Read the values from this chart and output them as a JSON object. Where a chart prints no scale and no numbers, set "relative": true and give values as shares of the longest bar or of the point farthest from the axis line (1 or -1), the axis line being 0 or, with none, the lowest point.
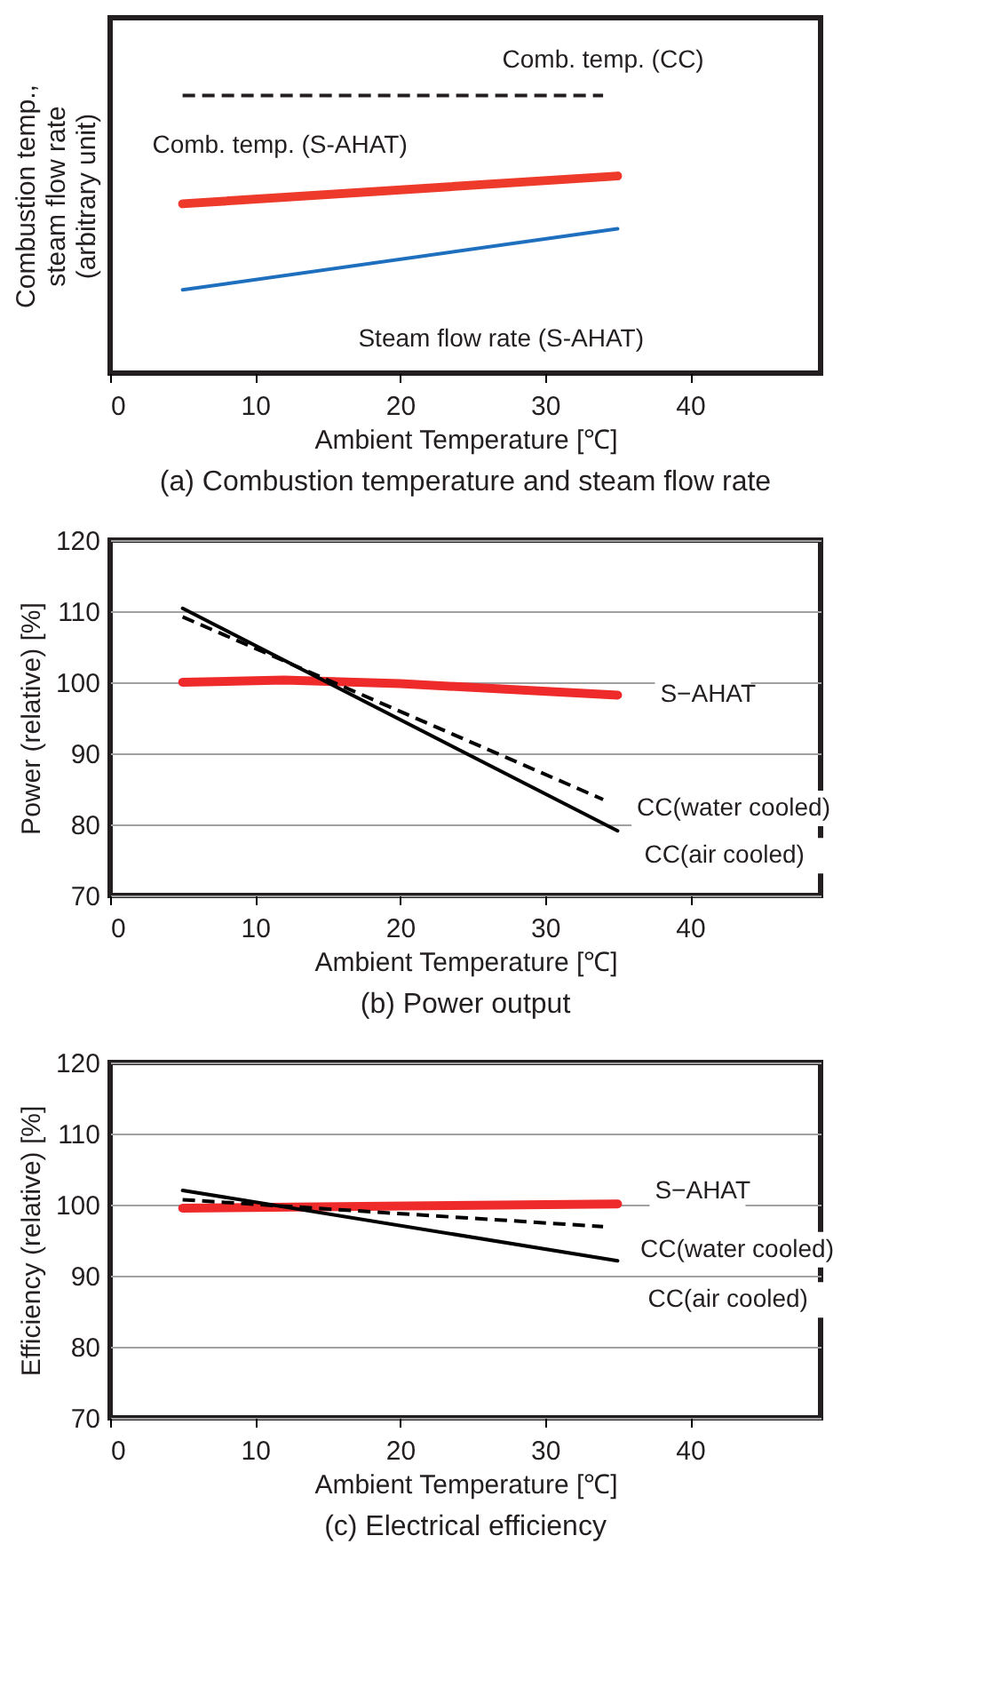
{
  "chart_data": [
    {
      "type": "line",
      "title": "(a) Combustion temperature and steam flow rate",
      "xlabel": "Ambient Temperature [℃]",
      "ylabel": "Combustion temp., steam flow rate (arbitrary unit)",
      "relative": true,
      "xlim": [
        0,
        49
      ],
      "xticks": [
        0,
        10,
        20,
        30,
        40
      ],
      "tick_labels": "x",
      "grid": false,
      "marker": "none",
      "series": [
        {
          "name": "Comb. temp. (CC)",
          "color": "#231f20",
          "line_style": "dashed",
          "x": [
            5,
            34
          ],
          "values": [
            1,
            1
          ]
        },
        {
          "name": "Comb. temp. (S-AHAT)",
          "color": "#ee3a2a",
          "line_style": "solid",
          "x": [
            5,
            35
          ],
          "values": [
            0.61,
            0.71
          ]
        },
        {
          "name": "Steam flow rate (S-AHAT)",
          "color": "#1f6fbf",
          "line_style": "solid",
          "x": [
            5,
            35
          ],
          "values": [
            0.3,
            0.52
          ]
        }
      ]
    },
    {
      "type": "line",
      "title": "(b) Power output",
      "xlabel": "Ambient Temperature [℃]",
      "ylabel": "Power (relative) [%]",
      "xlim": [
        0,
        49
      ],
      "xticks": [
        0,
        10,
        20,
        30,
        40
      ],
      "ylim": [
        70,
        120
      ],
      "yticks": [
        70,
        80,
        90,
        100,
        110,
        120
      ],
      "grid": "y",
      "marker": "none",
      "series": [
        {
          "name": "S−AHAT",
          "color": "#ee2a2a",
          "line_style": "solid",
          "x": [
            5,
            12,
            20,
            35
          ],
          "values": [
            100,
            100.3,
            99.8,
            98.2
          ]
        },
        {
          "name": "CC(water cooled)",
          "color": "#000000",
          "line_style": "dashed",
          "x": [
            5,
            34
          ],
          "values": [
            109.2,
            83.5
          ]
        },
        {
          "name": "CC(air cooled)",
          "color": "#000000",
          "line_style": "solid",
          "x": [
            5,
            35
          ],
          "values": [
            110.4,
            79.1
          ]
        }
      ]
    },
    {
      "type": "line",
      "title": "(c) Electrical efficiency",
      "xlabel": "Ambient Temperature [℃]",
      "ylabel": "Efficiency (relative) [%]",
      "xlim": [
        0,
        49
      ],
      "xticks": [
        0,
        10,
        20,
        30,
        40
      ],
      "ylim": [
        70,
        120
      ],
      "yticks": [
        70,
        80,
        90,
        100,
        110,
        120
      ],
      "grid": "y",
      "marker": "none",
      "series": [
        {
          "name": "S−AHAT",
          "color": "#ee2a2a",
          "line_style": "solid",
          "x": [
            5,
            35
          ],
          "values": [
            99.5,
            100.1
          ]
        },
        {
          "name": "CC(water cooled)",
          "color": "#000000",
          "line_style": "dashed",
          "x": [
            5,
            34
          ],
          "values": [
            100.7,
            96.9
          ]
        },
        {
          "name": "CC(air cooled)",
          "color": "#000000",
          "line_style": "solid",
          "x": [
            5,
            35
          ],
          "values": [
            102,
            92.1
          ]
        }
      ]
    }
  ]
}
